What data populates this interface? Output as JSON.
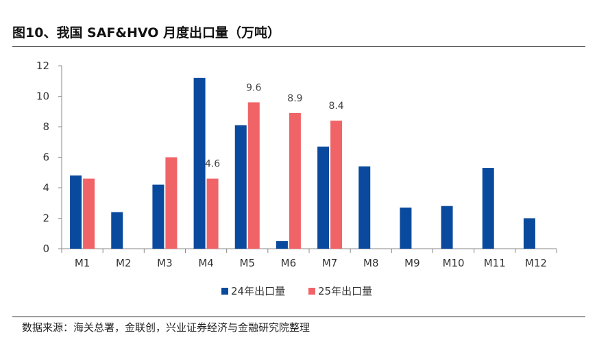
{
  "title": "图10、我国 SAF&HVO 月度出口量（万吨）",
  "source": "数据来源：海关总署，金联创，兴业证券经济与金融研究院整理",
  "chart_data": {
    "type": "bar",
    "title": "图10、我国 SAF&HVO 月度出口量（万吨）",
    "xlabel": "",
    "ylabel": "",
    "categories": [
      "M1",
      "M2",
      "M3",
      "M4",
      "M5",
      "M6",
      "M7",
      "M8",
      "M9",
      "M10",
      "M11",
      "M12"
    ],
    "series": [
      {
        "name": "24年出口量",
        "color": "#0a4a9e",
        "values": [
          4.8,
          2.4,
          4.2,
          11.2,
          8.1,
          0.5,
          6.7,
          5.4,
          2.7,
          2.8,
          5.3,
          2.0
        ]
      },
      {
        "name": "25年出口量",
        "color": "#f06468",
        "values": [
          4.6,
          null,
          6.0,
          4.6,
          9.6,
          8.9,
          8.4,
          null,
          null,
          null,
          null,
          null
        ]
      }
    ],
    "ylim": [
      0,
      12
    ],
    "yticks": [
      "0",
      "2",
      "4",
      "6",
      "8",
      "10",
      "12"
    ],
    "data_labels": [
      {
        "series": 1,
        "index": 3,
        "text": "4.6"
      },
      {
        "series": 1,
        "index": 4,
        "text": "9.6"
      },
      {
        "series": 1,
        "index": 5,
        "text": "8.9"
      },
      {
        "series": 1,
        "index": 6,
        "text": "8.4"
      }
    ],
    "grid": false,
    "legend": "bottom-center"
  }
}
